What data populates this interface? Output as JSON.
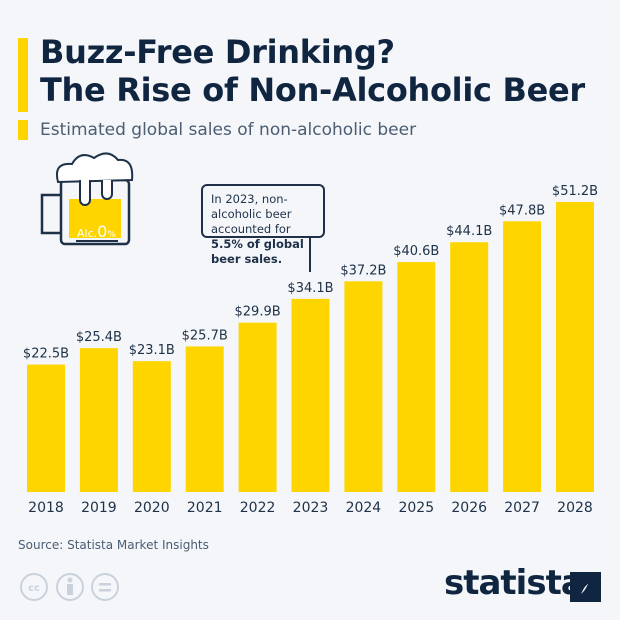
{
  "title_line1": "Buzz-Free Drinking?",
  "title_line2": "The Rise of Non-Alcoholic Beer",
  "subtitle": "Estimated global sales of non-alcoholic beer",
  "callout": {
    "text_plain": "In 2023, non-alcoholic beer accounted for ",
    "text_bold": "5.5% of global beer sales.",
    "mug_label": "Alc.",
    "mug_value": "0",
    "mug_unit": "%"
  },
  "source": "Source: Statista Market Insights",
  "brand": "statista",
  "colors": {
    "bar": "#ffd500",
    "text": "#0f2540",
    "background": "#f4f6f9"
  },
  "icons": [
    "creative-commons-icon",
    "attribution-icon",
    "no-derivatives-icon",
    "statista-logo-icon",
    "beer-mug-icon"
  ],
  "chart_data": {
    "type": "bar",
    "categories": [
      "2018",
      "2019",
      "2020",
      "2021",
      "2022",
      "2023",
      "2024",
      "2025",
      "2026",
      "2027",
      "2028"
    ],
    "values": [
      22.5,
      25.4,
      23.1,
      25.7,
      29.9,
      34.1,
      37.2,
      40.6,
      44.1,
      47.8,
      51.2
    ],
    "labels": [
      "$22.5B",
      "$25.4B",
      "$23.1B",
      "$25.7B",
      "$29.9B",
      "$34.1B",
      "$37.2B",
      "$40.6B",
      "$44.1B",
      "$47.8B",
      "$51.2B"
    ],
    "unit": "billion USD",
    "ylim": [
      0,
      51.2
    ],
    "grid": false
  }
}
